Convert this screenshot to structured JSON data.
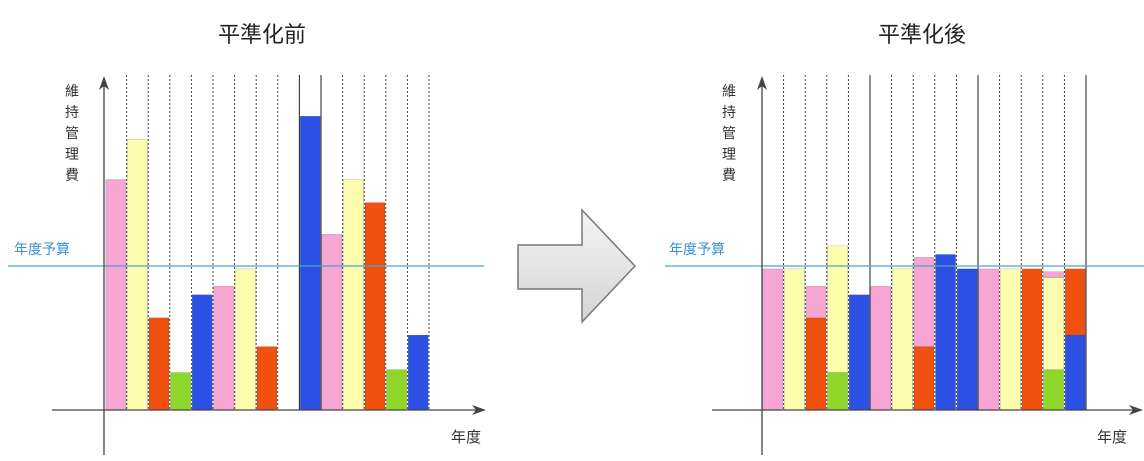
{
  "colors": {
    "pink": "#f7a6d4",
    "yellow": "#fdfdae",
    "orange": "#f1510f",
    "green": "#8fd62a",
    "blue": "#2b50e3",
    "budget_line": "#4aa3cc",
    "budget_text": "#3d8fd0",
    "axis": "#444444",
    "arrow_fill": "#e6e6e6",
    "arrow_stroke": "#777777"
  },
  "chart_data": [
    {
      "type": "bar",
      "title": "平準化前",
      "ylabel": "維持管理費",
      "xlabel": "年度",
      "budget_label": "年度予算",
      "budget": 50,
      "ylim": [
        0,
        100
      ],
      "bars": [
        {
          "segments": [
            {
              "color": "pink",
              "value": 80
            }
          ]
        },
        {
          "segments": [
            {
              "color": "yellow",
              "value": 94
            }
          ]
        },
        {
          "segments": [
            {
              "color": "orange",
              "value": 32
            }
          ]
        },
        {
          "segments": [
            {
              "color": "green",
              "value": 13
            }
          ]
        },
        {
          "segments": [
            {
              "color": "blue",
              "value": 40
            }
          ]
        },
        {
          "segments": [
            {
              "color": "pink",
              "value": 43
            }
          ]
        },
        {
          "segments": [
            {
              "color": "yellow",
              "value": 49
            }
          ]
        },
        {
          "segments": [
            {
              "color": "orange",
              "value": 22
            }
          ]
        },
        {
          "segments": []
        },
        {
          "segments": [
            {
              "color": "blue",
              "value": 102
            }
          ]
        },
        {
          "segments": [
            {
              "color": "pink",
              "value": 61
            }
          ]
        },
        {
          "segments": [
            {
              "color": "yellow",
              "value": 80
            }
          ]
        },
        {
          "segments": [
            {
              "color": "orange",
              "value": 72
            }
          ]
        },
        {
          "segments": [
            {
              "color": "green",
              "value": 14
            }
          ]
        },
        {
          "segments": [
            {
              "color": "blue",
              "value": 26
            }
          ]
        }
      ]
    },
    {
      "type": "bar",
      "title": "平準化後",
      "ylabel": "維持管理費",
      "xlabel": "年度",
      "budget_label": "年度予算",
      "budget": 50,
      "ylim": [
        0,
        100
      ],
      "bars": [
        {
          "segments": [
            {
              "color": "pink",
              "value": 49
            }
          ]
        },
        {
          "segments": [
            {
              "color": "yellow",
              "value": 49
            }
          ]
        },
        {
          "segments": [
            {
              "color": "orange",
              "value": 32
            },
            {
              "color": "pink",
              "value": 11
            }
          ]
        },
        {
          "segments": [
            {
              "color": "green",
              "value": 13
            },
            {
              "color": "yellow",
              "value": 44
            }
          ]
        },
        {
          "segments": [
            {
              "color": "blue",
              "value": 40
            }
          ]
        },
        {
          "segments": [
            {
              "color": "pink",
              "value": 43
            }
          ]
        },
        {
          "segments": [
            {
              "color": "yellow",
              "value": 49
            }
          ]
        },
        {
          "segments": [
            {
              "color": "orange",
              "value": 22
            },
            {
              "color": "pink",
              "value": 31
            }
          ]
        },
        {
          "segments": [
            {
              "color": "blue",
              "value": 54
            }
          ]
        },
        {
          "segments": [
            {
              "color": "blue",
              "value": 49
            }
          ]
        },
        {
          "segments": [
            {
              "color": "pink",
              "value": 49
            }
          ]
        },
        {
          "segments": [
            {
              "color": "yellow",
              "value": 49
            }
          ]
        },
        {
          "segments": [
            {
              "color": "orange",
              "value": 49
            }
          ]
        },
        {
          "segments": [
            {
              "color": "green",
              "value": 14
            },
            {
              "color": "yellow",
              "value": 32
            },
            {
              "color": "pink",
              "value": 2
            }
          ]
        },
        {
          "segments": [
            {
              "color": "blue",
              "value": 26
            },
            {
              "color": "orange",
              "value": 23
            }
          ]
        }
      ]
    }
  ]
}
